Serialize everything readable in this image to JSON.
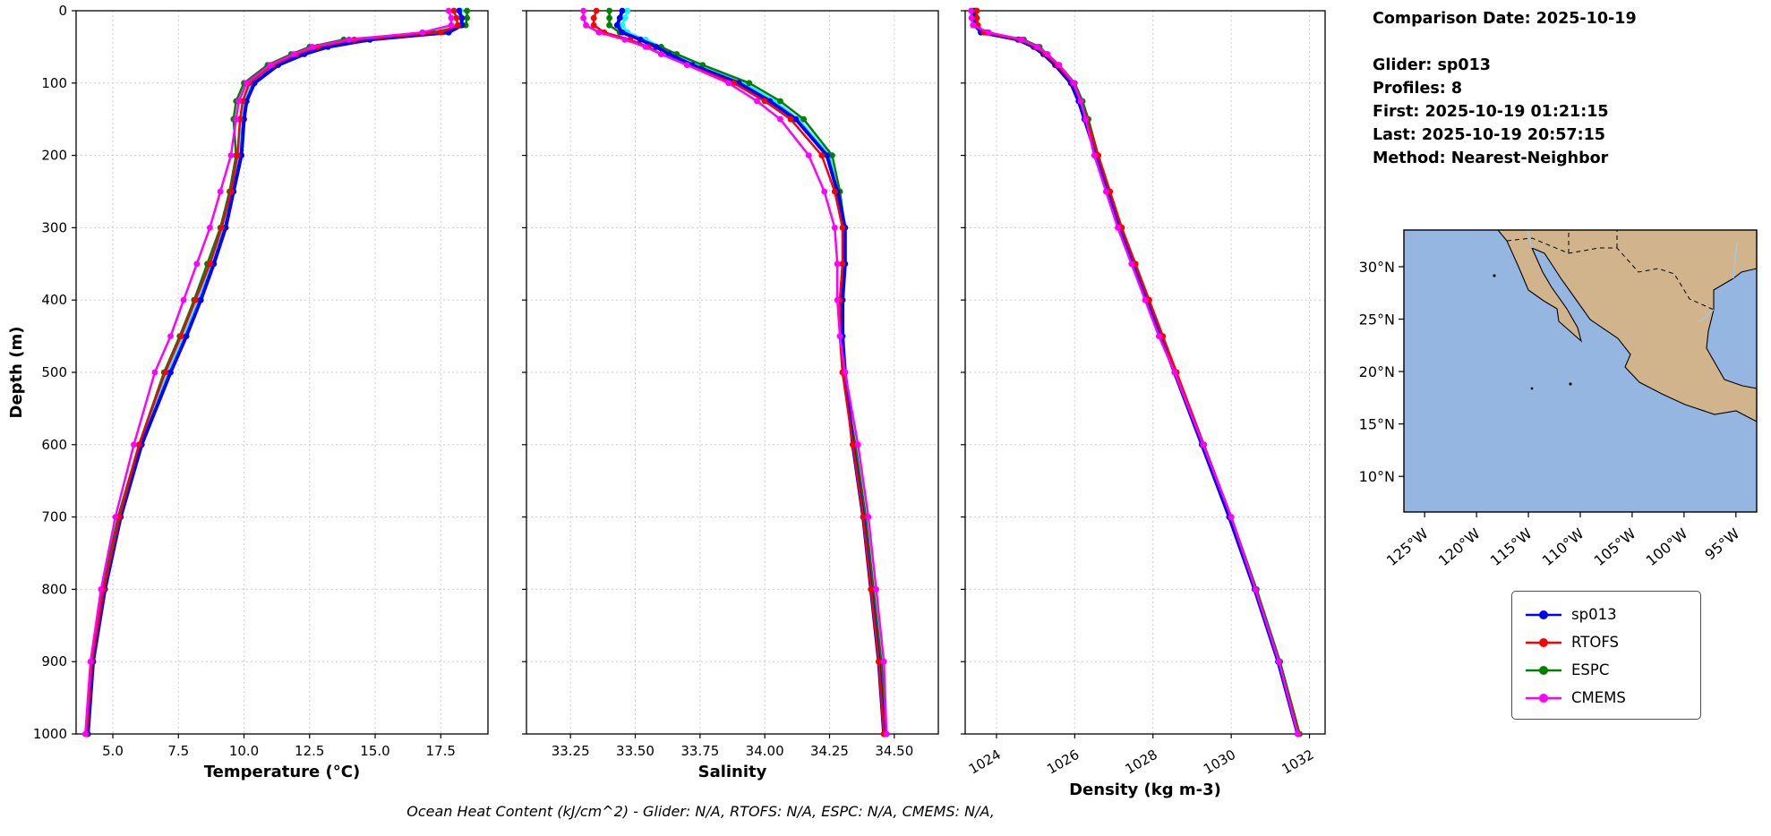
{
  "info_panel": {
    "comparison_date": "Comparison Date: 2025-10-19",
    "lines": [
      "Glider: sp013",
      "Profiles: 8",
      "First: 2025-10-19 01:21:15",
      "Last: 2025-10-19 20:57:15",
      "Method: Nearest-Neighbor"
    ]
  },
  "caption": "Ocean Heat Content (kJ/cm^2) - Glider: N/A,  RTOFS: N/A,  ESPC: N/A,  CMEMS: N/A,",
  "legend": {
    "entries": [
      {
        "label": "sp013",
        "color": "#0000ff"
      },
      {
        "label": "RTOFS",
        "color": "#ff0000"
      },
      {
        "label": "ESPC",
        "color": "#008000"
      },
      {
        "label": "CMEMS",
        "color": "#ff00ff"
      }
    ]
  },
  "map": {
    "colors": {
      "ocean": "#96b6e2",
      "land": "#d2b48c"
    },
    "lat_ticks": [
      30,
      25,
      20,
      15,
      10
    ],
    "lat_labels": [
      "30°N",
      "25°N",
      "20°N",
      "15°N",
      "10°N"
    ],
    "lon_ticks": [
      -125,
      -120,
      -115,
      -110,
      -105,
      -100,
      -95
    ],
    "lon_labels": [
      "125°W",
      "120°W",
      "115°W",
      "110°W",
      "105°W",
      "100°W",
      "95°W"
    ],
    "extent": {
      "lon": [
        -127.0,
        -93.0
      ],
      "lat": [
        6.6,
        33.5
      ]
    }
  },
  "chart_data": [
    {
      "type": "line",
      "name": "temperature-profile",
      "xlabel": "Temperature (°C)",
      "ylabel": "Depth (m)",
      "xlim": [
        3.6,
        19.3
      ],
      "ylim": [
        0,
        1000
      ],
      "xticks": [
        5.0,
        7.5,
        10.0,
        12.5,
        15.0,
        17.5
      ],
      "xtick_labels": [
        "5.0",
        "7.5",
        "10.0",
        "12.5",
        "15.0",
        "17.5"
      ],
      "yticks": [
        0,
        100,
        200,
        300,
        400,
        500,
        600,
        700,
        800,
        900,
        1000
      ],
      "grid": true,
      "depths": [
        0,
        10,
        20,
        30,
        40,
        50,
        60,
        75,
        100,
        125,
        150,
        200,
        250,
        300,
        350,
        400,
        450,
        500,
        600,
        700,
        800,
        900,
        1000
      ],
      "series": [
        {
          "name": "glider_scatter",
          "color": "#00ffff",
          "values": [
            18.25,
            18.3,
            18.25,
            17.6,
            14.6,
            13.0,
            12.1,
            11.2,
            10.3,
            10.0,
            9.9,
            9.8,
            9.5,
            9.2,
            8.75,
            8.25,
            7.7,
            7.1,
            6.05,
            5.25,
            4.65,
            4.2,
            4.0
          ]
        },
        {
          "name": "ESPC",
          "color": "#008000",
          "values": [
            18.5,
            18.5,
            18.45,
            17.2,
            13.8,
            12.5,
            11.8,
            10.9,
            10.0,
            9.7,
            9.6,
            9.7,
            9.45,
            9.1,
            8.6,
            8.1,
            7.55,
            6.95,
            6.0,
            5.2,
            4.6,
            4.2,
            4.0
          ]
        },
        {
          "name": "sp013",
          "color": "#0000ff",
          "values": [
            18.2,
            18.3,
            18.3,
            17.8,
            14.8,
            13.2,
            12.3,
            11.3,
            10.4,
            10.1,
            10.0,
            9.9,
            9.6,
            9.3,
            8.85,
            8.35,
            7.8,
            7.2,
            6.1,
            5.3,
            4.7,
            4.25,
            4.05
          ]
        },
        {
          "name": "RTOFS",
          "color": "#ff0000",
          "values": [
            18.0,
            18.1,
            18.15,
            17.5,
            14.2,
            12.8,
            12.0,
            11.1,
            10.2,
            9.95,
            9.85,
            9.75,
            9.5,
            9.15,
            8.7,
            8.15,
            7.6,
            7.0,
            6.0,
            5.25,
            4.65,
            4.2,
            4.0
          ]
        },
        {
          "name": "CMEMS",
          "color": "#ff00ff",
          "values": [
            17.8,
            17.9,
            17.9,
            16.8,
            14.0,
            12.6,
            11.9,
            11.0,
            10.1,
            9.8,
            9.7,
            9.5,
            9.1,
            8.7,
            8.2,
            7.7,
            7.2,
            6.6,
            5.8,
            5.1,
            4.55,
            4.15,
            3.95
          ]
        }
      ]
    },
    {
      "type": "line",
      "name": "salinity-profile",
      "xlabel": "Salinity",
      "ylabel": "Depth (m)",
      "xlim": [
        33.08,
        34.67
      ],
      "ylim": [
        0,
        1000
      ],
      "xticks": [
        33.25,
        33.5,
        33.75,
        34.0,
        34.25,
        34.5
      ],
      "xtick_labels": [
        "33.25",
        "33.50",
        "33.75",
        "34.00",
        "34.25",
        "34.50"
      ],
      "yticks": [
        0,
        100,
        200,
        300,
        400,
        500,
        600,
        700,
        800,
        900,
        1000
      ],
      "grid": true,
      "depths": [
        0,
        10,
        20,
        30,
        40,
        50,
        60,
        75,
        100,
        125,
        150,
        200,
        250,
        300,
        350,
        400,
        450,
        500,
        600,
        700,
        800,
        900,
        1000
      ],
      "series": [
        {
          "name": "glider_scatter",
          "color": "#00ffff",
          "values": [
            33.47,
            33.46,
            33.45,
            33.47,
            33.54,
            33.6,
            33.65,
            33.74,
            33.92,
            34.04,
            34.13,
            34.25,
            34.28,
            34.31,
            34.31,
            34.3,
            34.3,
            34.31,
            34.34,
            34.38,
            34.41,
            34.44,
            34.46
          ]
        },
        {
          "name": "ESPC",
          "color": "#008000",
          "values": [
            33.4,
            33.4,
            33.4,
            33.44,
            33.52,
            33.6,
            33.66,
            33.76,
            33.94,
            34.06,
            34.15,
            34.26,
            34.29,
            34.31,
            34.3,
            34.29,
            34.29,
            34.3,
            34.35,
            34.39,
            34.42,
            34.45,
            34.47
          ]
        },
        {
          "name": "sp013",
          "color": "#0000ff",
          "values": [
            33.45,
            33.44,
            33.43,
            33.45,
            33.52,
            33.58,
            33.63,
            33.72,
            33.9,
            34.02,
            34.12,
            34.24,
            34.28,
            34.31,
            34.31,
            34.3,
            34.3,
            34.31,
            34.34,
            34.38,
            34.41,
            34.44,
            34.46
          ]
        },
        {
          "name": "RTOFS",
          "color": "#ff0000",
          "values": [
            33.35,
            33.34,
            33.34,
            33.38,
            33.48,
            33.55,
            33.6,
            33.7,
            33.88,
            34.0,
            34.1,
            34.22,
            34.27,
            34.3,
            34.3,
            34.29,
            34.29,
            34.3,
            34.34,
            34.38,
            34.41,
            34.44,
            34.46
          ]
        },
        {
          "name": "CMEMS",
          "color": "#ff00ff",
          "values": [
            33.3,
            33.3,
            33.31,
            33.36,
            33.46,
            33.54,
            33.6,
            33.7,
            33.86,
            33.97,
            34.06,
            34.17,
            34.23,
            34.27,
            34.28,
            34.28,
            34.29,
            34.31,
            34.36,
            34.4,
            34.43,
            34.46,
            34.47
          ]
        }
      ]
    },
    {
      "type": "line",
      "name": "density-profile",
      "xlabel": "Density (kg m-3)",
      "ylabel": "Depth (m)",
      "xlim": [
        1023.2,
        1032.4
      ],
      "ylim": [
        0,
        1000
      ],
      "xticks": [
        1024,
        1026,
        1028,
        1030,
        1032
      ],
      "xtick_labels": [
        "1024",
        "1026",
        "1028",
        "1030",
        "1032"
      ],
      "yticks": [
        0,
        100,
        200,
        300,
        400,
        500,
        600,
        700,
        800,
        900,
        1000
      ],
      "grid": true,
      "depths": [
        0,
        10,
        20,
        30,
        40,
        50,
        60,
        75,
        100,
        125,
        150,
        200,
        250,
        300,
        350,
        400,
        450,
        500,
        600,
        700,
        800,
        900,
        1000
      ],
      "series": [
        {
          "name": "glider_scatter",
          "color": "#00ffff",
          "values": [
            1023.47,
            1023.47,
            1023.48,
            1023.62,
            1024.57,
            1024.97,
            1025.22,
            1025.52,
            1025.92,
            1026.12,
            1026.27,
            1026.57,
            1026.87,
            1027.17,
            1027.52,
            1027.87,
            1028.22,
            1028.57,
            1029.27,
            1029.97,
            1030.6,
            1031.2,
            1031.7
          ]
        },
        {
          "name": "ESPC",
          "color": "#008000",
          "values": [
            1023.4,
            1023.4,
            1023.42,
            1023.75,
            1024.7,
            1025.1,
            1025.3,
            1025.6,
            1026.0,
            1026.2,
            1026.35,
            1026.6,
            1026.9,
            1027.2,
            1027.55,
            1027.9,
            1028.25,
            1028.6,
            1029.3,
            1030.0,
            1030.65,
            1031.25,
            1031.75
          ]
        },
        {
          "name": "sp013",
          "color": "#0000ff",
          "values": [
            1023.45,
            1023.45,
            1023.46,
            1023.6,
            1024.55,
            1024.95,
            1025.2,
            1025.5,
            1025.9,
            1026.1,
            1026.25,
            1026.55,
            1026.85,
            1027.15,
            1027.5,
            1027.85,
            1028.2,
            1028.55,
            1029.25,
            1029.95,
            1030.6,
            1031.2,
            1031.7
          ]
        },
        {
          "name": "RTOFS",
          "color": "#ff0000",
          "values": [
            1023.5,
            1023.5,
            1023.52,
            1023.68,
            1024.6,
            1025.0,
            1025.25,
            1025.55,
            1025.95,
            1026.15,
            1026.3,
            1026.6,
            1026.9,
            1027.2,
            1027.55,
            1027.9,
            1028.25,
            1028.6,
            1029.3,
            1030.0,
            1030.62,
            1031.22,
            1031.72
          ]
        },
        {
          "name": "CMEMS",
          "color": "#ff00ff",
          "values": [
            1023.35,
            1023.36,
            1023.4,
            1023.8,
            1024.65,
            1025.05,
            1025.3,
            1025.6,
            1025.98,
            1026.15,
            1026.28,
            1026.5,
            1026.8,
            1027.1,
            1027.45,
            1027.8,
            1028.15,
            1028.55,
            1029.28,
            1030.0,
            1030.62,
            1031.22,
            1031.7
          ]
        }
      ]
    }
  ]
}
